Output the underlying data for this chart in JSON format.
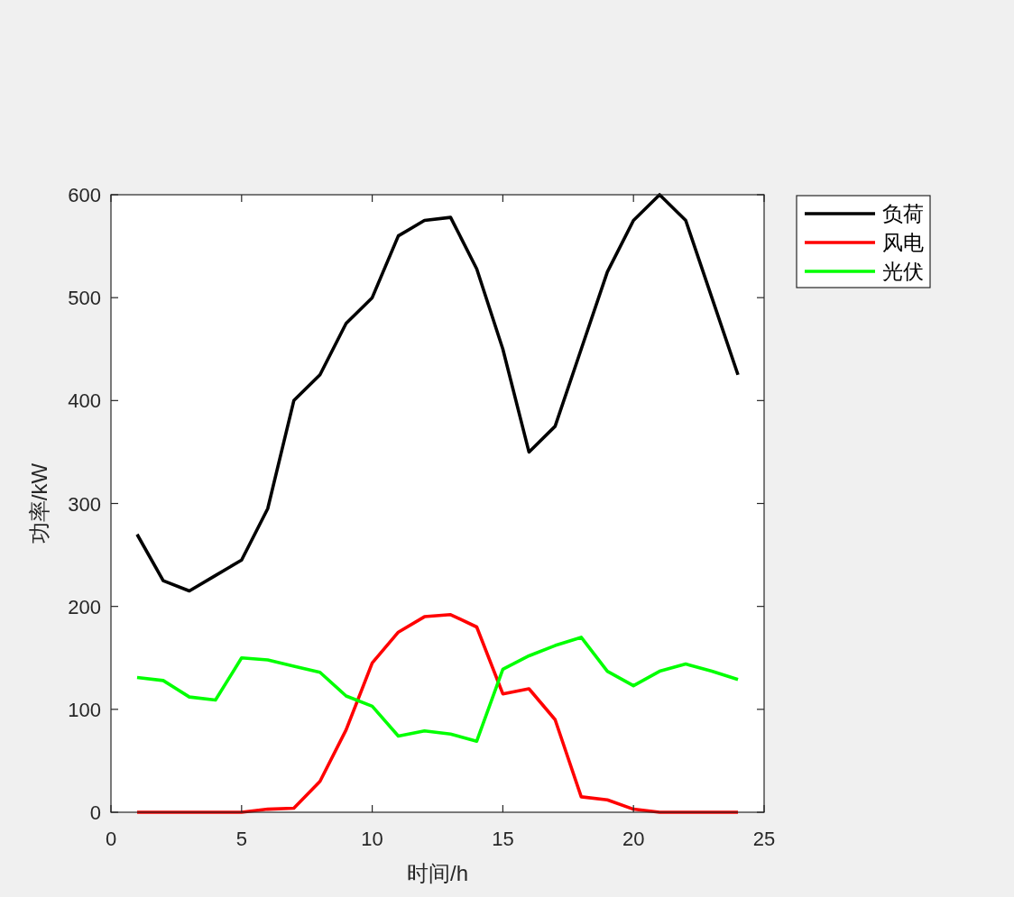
{
  "chart_data": {
    "type": "line",
    "xlabel": "时间/h",
    "ylabel": "功率/kW",
    "x": [
      1,
      2,
      3,
      4,
      5,
      6,
      7,
      8,
      9,
      10,
      11,
      12,
      13,
      14,
      15,
      16,
      17,
      18,
      19,
      20,
      21,
      22,
      23,
      24
    ],
    "series": [
      {
        "name": "负荷",
        "color": "#000000",
        "values": [
          270,
          225,
          215,
          230,
          245,
          295,
          400,
          425,
          475,
          500,
          560,
          575,
          578,
          528,
          450,
          350,
          375,
          450,
          525,
          575,
          600,
          575,
          500,
          425
        ]
      },
      {
        "name": "风电",
        "color": "#ff0000",
        "values": [
          0,
          0,
          0,
          0,
          0,
          3,
          4,
          30,
          80,
          145,
          175,
          190,
          192,
          180,
          115,
          120,
          90,
          15,
          12,
          3,
          0,
          0,
          0,
          0
        ]
      },
      {
        "name": "光伏",
        "color": "#00ff00",
        "values": [
          131,
          128,
          112,
          109,
          150,
          148,
          142,
          136,
          113,
          103,
          74,
          79,
          76,
          69,
          139,
          152,
          162,
          170,
          137,
          123,
          137,
          144,
          137,
          129
        ]
      }
    ],
    "xlim": [
      0,
      25
    ],
    "ylim": [
      0,
      600
    ],
    "xticks": [
      0,
      5,
      10,
      15,
      20,
      25
    ],
    "yticks": [
      0,
      100,
      200,
      300,
      400,
      500,
      600
    ],
    "legend": "top right",
    "line_style": "solid"
  }
}
